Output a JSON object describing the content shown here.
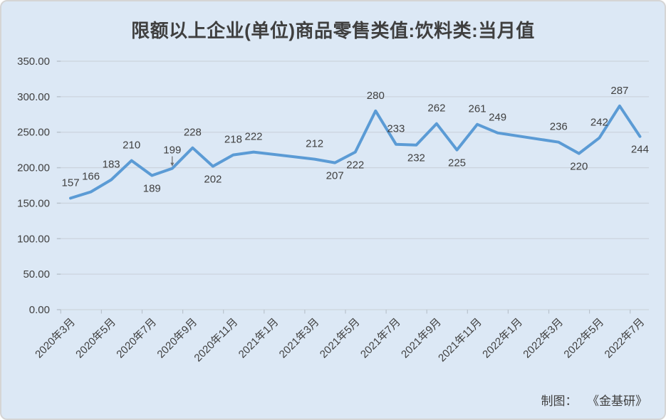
{
  "title": "限额以上企业(单位)商品零售类值:饮料类:当月值",
  "credit": {
    "prefix": "制图：",
    "source": "《金基研》"
  },
  "colors": {
    "background": "#dce8f5",
    "border": "#d5d5d5",
    "line": "#5b9bd5",
    "grid": "#ccd4de",
    "tick": "#b9c3cd",
    "text": "#404040",
    "title": "#3f3f3f",
    "leader": "#6b6b6b"
  },
  "chart_data": {
    "type": "line",
    "title": "限额以上企业(单位)商品零售类值:饮料类:当月值",
    "categories": [
      "2020年3月",
      "2020年4月",
      "2020年5月",
      "2020年6月",
      "2020年7月",
      "2020年8月",
      "2020年9月",
      "2020年10月",
      "2020年11月",
      "2020年12月",
      "2021年1月",
      "2021年2月",
      "2021年3月",
      "2021年4月",
      "2021年5月",
      "2021年6月",
      "2021年7月",
      "2021年8月",
      "2021年9月",
      "2021年10月",
      "2021年11月",
      "2021年12月",
      "2022年1月",
      "2022年2月",
      "2022年3月",
      "2022年4月",
      "2022年5月",
      "2022年6月",
      "2022年7月"
    ],
    "values": [
      157,
      166,
      183,
      210,
      189,
      199,
      228,
      202,
      218,
      222,
      null,
      null,
      212,
      207,
      222,
      280,
      233,
      232,
      262,
      225,
      261,
      249,
      null,
      null,
      236,
      220,
      242,
      287,
      244
    ],
    "label_positions": [
      "above",
      "above",
      "above",
      "above",
      "below",
      "above",
      "above",
      "below",
      "above",
      "above",
      null,
      null,
      "above",
      "below",
      "below",
      "above",
      "above",
      "below",
      "above",
      "below",
      "above",
      "above",
      null,
      null,
      "above",
      "below",
      "above",
      "above",
      "below"
    ],
    "leader_index": 5,
    "x_tick_labels": [
      "2020年3月",
      "2020年5月",
      "2020年7月",
      "2020年9月",
      "2020年11月",
      "2021年1月",
      "2021年3月",
      "2021年5月",
      "2021年7月",
      "2021年9月",
      "2021年11月",
      "2022年1月",
      "2022年3月",
      "2022年5月",
      "2022年7月"
    ],
    "x_label_every": 2,
    "y_ticks": [
      {
        "value": 350,
        "label": "350.00"
      },
      {
        "value": 300,
        "label": "300.00"
      },
      {
        "value": 250,
        "label": "250.00"
      },
      {
        "value": 200,
        "label": "200.00"
      },
      {
        "value": 150,
        "label": "150.00"
      },
      {
        "value": 100,
        "label": "100.00"
      },
      {
        "value": 50,
        "label": "50.00"
      },
      {
        "value": 0,
        "label": "0.00"
      }
    ],
    "ylim": [
      0,
      350
    ],
    "grid": true,
    "legend": false,
    "markers": false
  }
}
